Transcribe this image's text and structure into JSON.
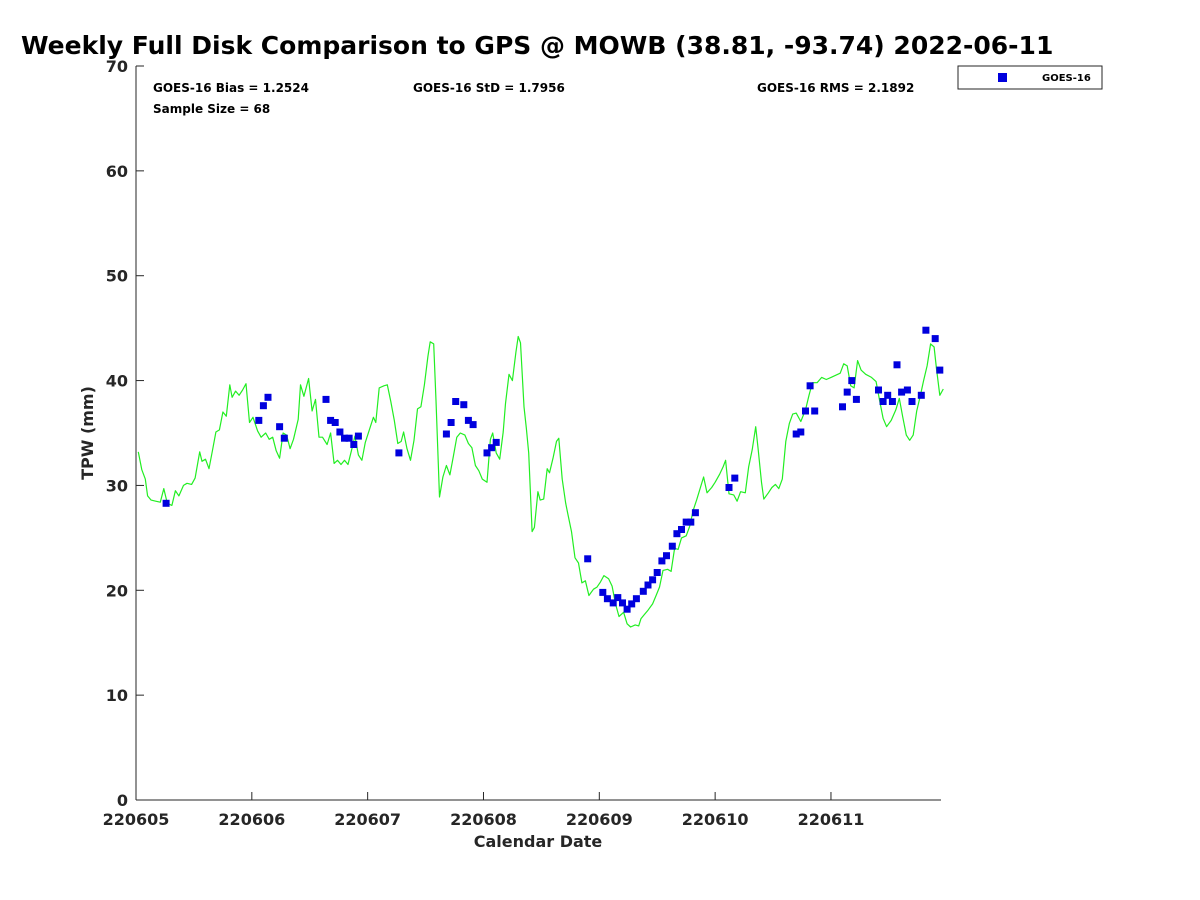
{
  "chart_data": {
    "type": "scatter",
    "title": "Weekly Full Disk Comparison to GPS @ MOWB (38.81, -93.74) 2022-06-11",
    "xlabel": "Calendar Date",
    "ylabel": "TPW (mm)",
    "xlim": [
      0,
      6.95
    ],
    "ylim": [
      0,
      70
    ],
    "x_ticks": [
      0,
      1,
      2,
      3,
      4,
      5,
      6
    ],
    "x_tick_labels": [
      "220605",
      "220606",
      "220607",
      "220608",
      "220609",
      "220610",
      "220611"
    ],
    "y_ticks": [
      0,
      10,
      20,
      30,
      40,
      50,
      60,
      70
    ],
    "y_tick_labels": [
      "0",
      "10",
      "20",
      "30",
      "40",
      "50",
      "60",
      "70"
    ],
    "stats": {
      "bias": "GOES-16 Bias = 1.2524",
      "std": "GOES-16 StD = 1.7956",
      "rms": "GOES-16 RMS = 2.1892",
      "sample_size": "Sample Size = 68"
    },
    "legend": {
      "label": "GOES-16",
      "placement": "outside-top-right"
    },
    "colors": {
      "goes": "#0000dd",
      "gps": "#22ee22"
    },
    "series": [
      {
        "name": "GOES-16",
        "kind": "scatter",
        "points": [
          [
            0.26,
            28.3
          ],
          [
            1.06,
            36.2
          ],
          [
            1.1,
            37.6
          ],
          [
            1.14,
            38.4
          ],
          [
            1.24,
            35.6
          ],
          [
            1.28,
            34.5
          ],
          [
            1.64,
            38.2
          ],
          [
            1.68,
            36.2
          ],
          [
            1.72,
            36.0
          ],
          [
            1.76,
            35.1
          ],
          [
            1.8,
            34.5
          ],
          [
            1.84,
            34.5
          ],
          [
            1.88,
            33.9
          ],
          [
            1.92,
            34.7
          ],
          [
            2.27,
            33.1
          ],
          [
            2.68,
            34.9
          ],
          [
            2.72,
            36.0
          ],
          [
            2.76,
            38.0
          ],
          [
            2.83,
            37.7
          ],
          [
            2.87,
            36.2
          ],
          [
            2.91,
            35.8
          ],
          [
            3.03,
            33.1
          ],
          [
            3.07,
            33.6
          ],
          [
            3.11,
            34.1
          ],
          [
            3.9,
            23.0
          ],
          [
            4.03,
            19.8
          ],
          [
            4.07,
            19.2
          ],
          [
            4.12,
            18.8
          ],
          [
            4.16,
            19.3
          ],
          [
            4.2,
            18.8
          ],
          [
            4.24,
            18.2
          ],
          [
            4.28,
            18.7
          ],
          [
            4.32,
            19.2
          ],
          [
            4.38,
            19.9
          ],
          [
            4.42,
            20.5
          ],
          [
            4.46,
            21.0
          ],
          [
            4.5,
            21.7
          ],
          [
            4.54,
            22.8
          ],
          [
            4.58,
            23.3
          ],
          [
            4.63,
            24.2
          ],
          [
            4.67,
            25.4
          ],
          [
            4.71,
            25.8
          ],
          [
            4.75,
            26.5
          ],
          [
            4.79,
            26.5
          ],
          [
            4.83,
            27.4
          ],
          [
            5.12,
            29.8
          ],
          [
            5.17,
            30.7
          ],
          [
            5.7,
            34.9
          ],
          [
            5.74,
            35.1
          ],
          [
            5.78,
            37.1
          ],
          [
            5.82,
            39.5
          ],
          [
            5.86,
            37.1
          ],
          [
            6.1,
            37.5
          ],
          [
            6.14,
            38.9
          ],
          [
            6.18,
            40.0
          ],
          [
            6.22,
            38.2
          ],
          [
            6.41,
            39.1
          ],
          [
            6.45,
            38.0
          ],
          [
            6.49,
            38.6
          ],
          [
            6.53,
            38.0
          ],
          [
            6.57,
            41.5
          ],
          [
            6.61,
            38.9
          ],
          [
            6.66,
            39.1
          ],
          [
            6.7,
            38.0
          ],
          [
            6.78,
            38.6
          ],
          [
            6.82,
            44.8
          ],
          [
            6.9,
            44.0
          ],
          [
            6.94,
            41.0
          ]
        ]
      },
      {
        "name": "",
        "kind": "line",
        "points": [
          [
            0.02,
            33.2
          ],
          [
            0.05,
            31.5
          ],
          [
            0.08,
            30.6
          ],
          [
            0.1,
            29.0
          ],
          [
            0.13,
            28.6
          ],
          [
            0.17,
            28.5
          ],
          [
            0.21,
            28.4
          ],
          [
            0.24,
            29.7
          ],
          [
            0.27,
            28.3
          ],
          [
            0.31,
            28.1
          ],
          [
            0.34,
            29.5
          ],
          [
            0.37,
            29.0
          ],
          [
            0.41,
            30.0
          ],
          [
            0.44,
            30.2
          ],
          [
            0.48,
            30.1
          ],
          [
            0.51,
            30.7
          ],
          [
            0.55,
            33.2
          ],
          [
            0.57,
            32.3
          ],
          [
            0.6,
            32.5
          ],
          [
            0.63,
            31.6
          ],
          [
            0.66,
            33.3
          ],
          [
            0.69,
            35.1
          ],
          [
            0.72,
            35.3
          ],
          [
            0.75,
            37.0
          ],
          [
            0.78,
            36.6
          ],
          [
            0.81,
            39.6
          ],
          [
            0.83,
            38.4
          ],
          [
            0.86,
            39.0
          ],
          [
            0.89,
            38.6
          ],
          [
            0.92,
            39.1
          ],
          [
            0.95,
            39.7
          ],
          [
            0.98,
            36.0
          ],
          [
            1.01,
            36.5
          ],
          [
            1.05,
            35.2
          ],
          [
            1.08,
            34.6
          ],
          [
            1.12,
            35.0
          ],
          [
            1.15,
            34.4
          ],
          [
            1.18,
            34.6
          ],
          [
            1.21,
            33.3
          ],
          [
            1.24,
            32.6
          ],
          [
            1.27,
            35.0
          ],
          [
            1.3,
            34.8
          ],
          [
            1.33,
            33.5
          ],
          [
            1.36,
            34.4
          ],
          [
            1.4,
            36.3
          ],
          [
            1.42,
            39.6
          ],
          [
            1.45,
            38.5
          ],
          [
            1.49,
            40.2
          ],
          [
            1.52,
            37.1
          ],
          [
            1.55,
            38.2
          ],
          [
            1.58,
            34.6
          ],
          [
            1.61,
            34.6
          ],
          [
            1.65,
            33.9
          ],
          [
            1.68,
            35.0
          ],
          [
            1.71,
            32.1
          ],
          [
            1.74,
            32.4
          ],
          [
            1.77,
            32.0
          ],
          [
            1.8,
            32.4
          ],
          [
            1.83,
            32.0
          ],
          [
            1.86,
            33.3
          ],
          [
            1.89,
            34.7
          ],
          [
            1.92,
            32.9
          ],
          [
            1.95,
            32.4
          ],
          [
            1.98,
            34.1
          ],
          [
            2.02,
            35.5
          ],
          [
            2.05,
            36.5
          ],
          [
            2.07,
            36.0
          ],
          [
            2.1,
            39.3
          ],
          [
            2.14,
            39.5
          ],
          [
            2.17,
            39.6
          ],
          [
            2.2,
            38.0
          ],
          [
            2.23,
            36.2
          ],
          [
            2.26,
            34.0
          ],
          [
            2.29,
            34.2
          ],
          [
            2.31,
            35.1
          ],
          [
            2.34,
            33.5
          ],
          [
            2.37,
            32.4
          ],
          [
            2.4,
            34.3
          ],
          [
            2.43,
            37.3
          ],
          [
            2.46,
            37.5
          ],
          [
            2.49,
            39.6
          ],
          [
            2.52,
            42.3
          ],
          [
            2.54,
            43.7
          ],
          [
            2.57,
            43.5
          ],
          [
            2.59,
            38.1
          ],
          [
            2.62,
            28.9
          ],
          [
            2.65,
            30.8
          ],
          [
            2.68,
            31.9
          ],
          [
            2.71,
            31.0
          ],
          [
            2.74,
            32.8
          ],
          [
            2.77,
            34.6
          ],
          [
            2.8,
            35.0
          ],
          [
            2.84,
            34.8
          ],
          [
            2.87,
            34.0
          ],
          [
            2.9,
            33.6
          ],
          [
            2.93,
            31.9
          ],
          [
            2.96,
            31.4
          ],
          [
            2.99,
            30.6
          ],
          [
            3.03,
            30.3
          ],
          [
            3.06,
            34.4
          ],
          [
            3.08,
            35.0
          ],
          [
            3.11,
            33.1
          ],
          [
            3.14,
            32.5
          ],
          [
            3.17,
            35.1
          ],
          [
            3.19,
            37.8
          ],
          [
            3.22,
            40.6
          ],
          [
            3.25,
            40.0
          ],
          [
            3.28,
            42.7
          ],
          [
            3.3,
            44.2
          ],
          [
            3.32,
            43.6
          ],
          [
            3.35,
            37.5
          ],
          [
            3.37,
            35.5
          ],
          [
            3.39,
            33.1
          ],
          [
            3.42,
            25.6
          ],
          [
            3.44,
            26.0
          ],
          [
            3.47,
            29.4
          ],
          [
            3.49,
            28.6
          ],
          [
            3.52,
            28.7
          ],
          [
            3.55,
            31.6
          ],
          [
            3.57,
            31.2
          ],
          [
            3.6,
            32.6
          ],
          [
            3.63,
            34.2
          ],
          [
            3.65,
            34.5
          ],
          [
            3.68,
            30.6
          ],
          [
            3.71,
            28.3
          ],
          [
            3.73,
            27.2
          ],
          [
            3.76,
            25.6
          ],
          [
            3.79,
            23.1
          ],
          [
            3.82,
            22.6
          ],
          [
            3.85,
            20.7
          ],
          [
            3.88,
            20.9
          ],
          [
            3.91,
            19.5
          ],
          [
            3.95,
            20.1
          ],
          [
            3.98,
            20.3
          ],
          [
            4.01,
            20.8
          ],
          [
            4.04,
            21.4
          ],
          [
            4.08,
            21.1
          ],
          [
            4.11,
            20.4
          ],
          [
            4.14,
            18.7
          ],
          [
            4.17,
            17.5
          ],
          [
            4.21,
            17.9
          ],
          [
            4.24,
            16.8
          ],
          [
            4.27,
            16.5
          ],
          [
            4.31,
            16.7
          ],
          [
            4.34,
            16.6
          ],
          [
            4.36,
            17.3
          ],
          [
            4.39,
            17.7
          ],
          [
            4.42,
            18.1
          ],
          [
            4.46,
            18.7
          ],
          [
            4.49,
            19.5
          ],
          [
            4.52,
            20.3
          ],
          [
            4.55,
            21.9
          ],
          [
            4.59,
            22.0
          ],
          [
            4.62,
            21.8
          ],
          [
            4.65,
            24.0
          ],
          [
            4.68,
            23.9
          ],
          [
            4.71,
            25.0
          ],
          [
            4.75,
            25.2
          ],
          [
            4.78,
            26.1
          ],
          [
            4.81,
            27.6
          ],
          [
            4.84,
            28.6
          ],
          [
            4.87,
            29.7
          ],
          [
            4.9,
            30.8
          ],
          [
            4.93,
            29.3
          ],
          [
            4.97,
            29.8
          ],
          [
            5.0,
            30.3
          ],
          [
            5.04,
            31.1
          ],
          [
            5.07,
            31.8
          ],
          [
            5.09,
            32.4
          ],
          [
            5.12,
            29.2
          ],
          [
            5.16,
            29.1
          ],
          [
            5.19,
            28.5
          ],
          [
            5.22,
            29.4
          ],
          [
            5.26,
            29.3
          ],
          [
            5.29,
            31.8
          ],
          [
            5.32,
            33.4
          ],
          [
            5.35,
            35.6
          ],
          [
            5.37,
            33.6
          ],
          [
            5.4,
            30.3
          ],
          [
            5.42,
            28.7
          ],
          [
            5.46,
            29.3
          ],
          [
            5.49,
            29.8
          ],
          [
            5.52,
            30.1
          ],
          [
            5.55,
            29.7
          ],
          [
            5.58,
            30.6
          ],
          [
            5.61,
            34.2
          ],
          [
            5.64,
            35.9
          ],
          [
            5.67,
            36.8
          ],
          [
            5.7,
            36.9
          ],
          [
            5.74,
            36.1
          ],
          [
            5.78,
            37.2
          ],
          [
            5.81,
            38.6
          ],
          [
            5.84,
            39.8
          ],
          [
            5.88,
            39.8
          ],
          [
            5.92,
            40.3
          ],
          [
            5.96,
            40.1
          ],
          [
            6.0,
            40.3
          ],
          [
            6.04,
            40.5
          ],
          [
            6.08,
            40.7
          ],
          [
            6.11,
            41.6
          ],
          [
            6.14,
            41.4
          ],
          [
            6.17,
            39.5
          ],
          [
            6.2,
            39.3
          ],
          [
            6.23,
            41.9
          ],
          [
            6.26,
            41.0
          ],
          [
            6.3,
            40.6
          ],
          [
            6.35,
            40.3
          ],
          [
            6.39,
            39.9
          ],
          [
            6.42,
            38.1
          ],
          [
            6.45,
            36.4
          ],
          [
            6.48,
            35.6
          ],
          [
            6.52,
            36.2
          ],
          [
            6.56,
            37.2
          ],
          [
            6.59,
            38.3
          ],
          [
            6.62,
            36.5
          ],
          [
            6.65,
            34.8
          ],
          [
            6.68,
            34.3
          ],
          [
            6.71,
            34.8
          ],
          [
            6.74,
            37.1
          ],
          [
            6.77,
            38.5
          ],
          [
            6.8,
            40.0
          ],
          [
            6.83,
            41.4
          ],
          [
            6.86,
            43.5
          ],
          [
            6.89,
            43.2
          ],
          [
            6.91,
            41.2
          ],
          [
            6.94,
            38.6
          ],
          [
            6.97,
            39.2
          ]
        ]
      }
    ]
  }
}
